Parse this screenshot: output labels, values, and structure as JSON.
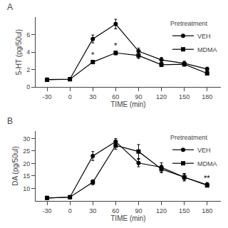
{
  "chart_data": [
    {
      "type": "line",
      "title": "A",
      "xlabel": "TIME (min)",
      "ylabel": "5-HT (pg/50ul)",
      "x": [
        -30,
        0,
        30,
        60,
        90,
        120,
        150,
        180
      ],
      "series": [
        {
          "name": "VEH",
          "color": "#000000",
          "marker": "circle",
          "line_style": "solid",
          "values": [
            0.85,
            0.9,
            5.5,
            7.2,
            4.1,
            3.1,
            2.7,
            2.05
          ],
          "errors": [
            0.08,
            0.08,
            0.45,
            0.55,
            0.35,
            0.28,
            0.25,
            0.22
          ]
        },
        {
          "name": "MDMA",
          "color": "#000000",
          "marker": "square",
          "line_style": "solid",
          "values": [
            0.82,
            0.88,
            2.85,
            3.9,
            3.6,
            2.55,
            2.6,
            1.55
          ],
          "errors": [
            0.08,
            0.08,
            0.18,
            0.22,
            0.35,
            0.22,
            0.22,
            0.18
          ],
          "annotations": [
            {
              "x": 30,
              "text": "*"
            },
            {
              "x": 60,
              "text": "*"
            }
          ]
        }
      ],
      "xlim": [
        -45,
        198
      ],
      "xticks": [
        -30,
        0,
        30,
        60,
        90,
        120,
        150,
        180
      ],
      "ylim": [
        0,
        8
      ],
      "yticks": [
        0,
        2,
        4,
        6
      ],
      "legend": "upper right",
      "legend_title": "Pretreatment",
      "grid": false
    },
    {
      "type": "line",
      "title": "B",
      "xlabel": "TIME (min)",
      "ylabel": "DA (pg/50ul)",
      "x": [
        -30,
        0,
        30,
        60,
        90,
        120,
        150,
        180
      ],
      "series": [
        {
          "name": "VEH",
          "color": "#000000",
          "marker": "circle",
          "line_style": "solid",
          "values": [
            6.2,
            6.5,
            23.0,
            28.8,
            20.2,
            18.5,
            14.5,
            11.5
          ],
          "errors": [
            0.5,
            0.5,
            1.8,
            1.2,
            1.5,
            1.8,
            1.5,
            0.9
          ]
        },
        {
          "name": "MDMA",
          "color": "#000000",
          "marker": "square",
          "line_style": "solid",
          "values": [
            6.2,
            6.5,
            12.5,
            27.2,
            24.8,
            17.8,
            14.5,
            11.2
          ],
          "errors": [
            0.5,
            0.5,
            1.0,
            1.5,
            2.8,
            1.5,
            1.2,
            0.6
          ],
          "annotations": [
            {
              "x": 180,
              "text": "**"
            }
          ]
        }
      ],
      "xlim": [
        -45,
        198
      ],
      "xticks": [
        -30,
        0,
        30,
        60,
        90,
        120,
        150,
        180
      ],
      "ylim": [
        5,
        33
      ],
      "yticks": [
        10,
        15,
        20,
        25,
        30
      ],
      "legend": "upper right",
      "legend_title": "Pretreatment",
      "grid": false
    }
  ]
}
